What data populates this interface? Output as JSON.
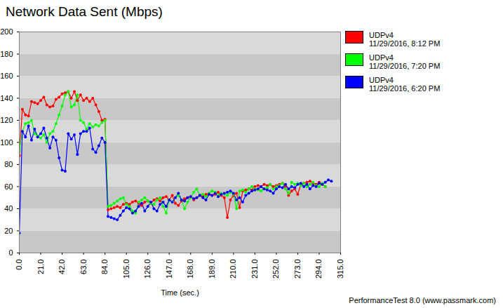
{
  "chart_data": {
    "type": "line",
    "title": "Network Data Sent (Mbps)",
    "x_label": "Time (sec.)",
    "footer": "PerformanceTest 8.0 (www.passmark.com)",
    "xlim": [
      0,
      315
    ],
    "xticks": [
      {
        "value": 0,
        "label": "0.0"
      },
      {
        "value": 21,
        "label": "21.0"
      },
      {
        "value": 42,
        "label": "42.0"
      },
      {
        "value": 63,
        "label": "63.0"
      },
      {
        "value": 84,
        "label": "84.0"
      },
      {
        "value": 105,
        "label": "105.0"
      },
      {
        "value": 126,
        "label": "126.0"
      },
      {
        "value": 147,
        "label": "147.0"
      },
      {
        "value": 168,
        "label": "168.0"
      },
      {
        "value": 189,
        "label": "189.0"
      },
      {
        "value": 210,
        "label": "210.0"
      },
      {
        "value": 231,
        "label": "231.0"
      },
      {
        "value": 252,
        "label": "252.0"
      },
      {
        "value": 273,
        "label": "273.0"
      },
      {
        "value": 294,
        "label": "294.0"
      },
      {
        "value": 315,
        "label": "315.0"
      }
    ],
    "ylim": [
      0,
      200
    ],
    "yticks": [
      0,
      20,
      40,
      60,
      80,
      100,
      120,
      140,
      160,
      180,
      200
    ],
    "grid": true,
    "legend": "right",
    "marker": "circle",
    "x": [
      0,
      3,
      6,
      9,
      12,
      15,
      18,
      21,
      24,
      27,
      30,
      33,
      36,
      39,
      42,
      45,
      48,
      51,
      54,
      57,
      60,
      63,
      66,
      69,
      72,
      75,
      78,
      81,
      84,
      87,
      90,
      93,
      96,
      99,
      102,
      105,
      108,
      111,
      114,
      117,
      120,
      123,
      126,
      129,
      132,
      135,
      138,
      141,
      144,
      147,
      150,
      153,
      156,
      159,
      162,
      165,
      168,
      171,
      174,
      177,
      180,
      183,
      186,
      189,
      192,
      195,
      198,
      201,
      204,
      207,
      210,
      213,
      216,
      219,
      222,
      225,
      228,
      231,
      234,
      237,
      240,
      243,
      246,
      249,
      252,
      255,
      258,
      261,
      264,
      267,
      270,
      273,
      276,
      279,
      282,
      285,
      288,
      291,
      294,
      297,
      300,
      303,
      306
    ],
    "series": [
      {
        "name": "UDPv4",
        "timestamp": "11/29/2016, 8:12 PM",
        "color": "#ff0000",
        "values": [
          88,
          130,
          125,
          124,
          137,
          136,
          135,
          138,
          141,
          134,
          132,
          133,
          139,
          141,
          144,
          145,
          146,
          140,
          146,
          138,
          143,
          138,
          140,
          137,
          140,
          134,
          128,
          120,
          121,
          39,
          40,
          41,
          42,
          41,
          44,
          45,
          44,
          46,
          47,
          45,
          43,
          46,
          47,
          45,
          48,
          49,
          47,
          50,
          51,
          48,
          52,
          45,
          43,
          47,
          49,
          50,
          51,
          48,
          50,
          52,
          51,
          53,
          54,
          52,
          53,
          55,
          52,
          50,
          32,
          48,
          52,
          54,
          41,
          56,
          57,
          58,
          57,
          60,
          61,
          60,
          62,
          61,
          62,
          60,
          61,
          62,
          63,
          60,
          52,
          56,
          58,
          53,
          62,
          63,
          64,
          65,
          63,
          62,
          64,
          62,
          60,
          null,
          null
        ]
      },
      {
        "name": "UDPv4",
        "timestamp": "11/29/2016, 7:20 PM",
        "color": "#00ff00",
        "values": [
          93,
          110,
          117,
          118,
          120,
          108,
          106,
          104,
          107,
          100,
          108,
          110,
          117,
          125,
          133,
          143,
          146,
          132,
          134,
          143,
          120,
          118,
          112,
          117,
          114,
          116,
          115,
          118,
          120,
          42,
          43,
          45,
          47,
          49,
          50,
          44,
          42,
          38,
          36,
          46,
          48,
          50,
          47,
          45,
          44,
          48,
          50,
          42,
          36,
          48,
          46,
          50,
          52,
          48,
          40,
          46,
          50,
          55,
          58,
          52,
          53,
          51,
          54,
          56,
          55,
          52,
          54,
          53,
          52,
          55,
          53,
          40,
          56,
          57,
          55,
          58,
          60,
          58,
          57,
          56,
          58,
          59,
          62,
          58,
          60,
          61,
          63,
          58,
          54,
          64,
          62,
          63,
          61,
          63,
          60,
          62,
          64,
          61,
          60,
          63,
          60,
          null,
          null
        ]
      },
      {
        "name": "UDPv4",
        "timestamp": "11/29/2016, 6:20 PM",
        "color": "#0000ff",
        "values": [
          18,
          110,
          105,
          115,
          102,
          112,
          105,
          108,
          113,
          104,
          95,
          105,
          102,
          86,
          75,
          74,
          108,
          103,
          107,
          89,
          108,
          110,
          110,
          113,
          94,
          91,
          97,
          104,
          100,
          33,
          32,
          31,
          30,
          34,
          38,
          41,
          40,
          36,
          38,
          42,
          45,
          38,
          42,
          46,
          40,
          38,
          44,
          46,
          42,
          48,
          46,
          50,
          54,
          48,
          47,
          50,
          51,
          49,
          50,
          52,
          50,
          48,
          53,
          52,
          54,
          51,
          53,
          54,
          55,
          56,
          54,
          48,
          50,
          46,
          52,
          54,
          56,
          57,
          58,
          60,
          58,
          57,
          56,
          54,
          58,
          60,
          59,
          62,
          58,
          60,
          59,
          62,
          63,
          60,
          62,
          58,
          61,
          60,
          63,
          62,
          64,
          66,
          65
        ]
      }
    ]
  }
}
